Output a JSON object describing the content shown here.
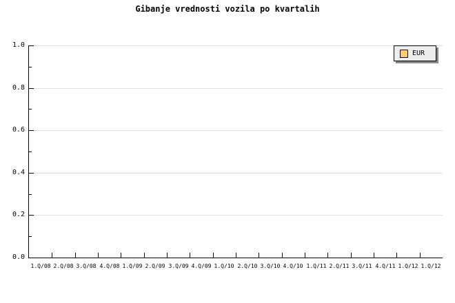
{
  "title": "Gibanje vrednosti vozila po kvartalih",
  "legend": {
    "label": "EUR",
    "swatch_color": "#FFCC66",
    "background": "#EDEDED",
    "border_color": "#000000",
    "shadow_color": "#888888"
  },
  "colors": {
    "background": "#FFFFFF",
    "axis": "#000000",
    "grid": "#DEDEDE",
    "text": "#000000"
  },
  "chart_data": {
    "type": "line",
    "title": "Gibanje vrednosti vozila po kvartalih",
    "categories": [
      "1.Q/08",
      "2.Q/08",
      "3.Q/08",
      "4.Q/08",
      "1.Q/09",
      "2.Q/09",
      "3.Q/09",
      "4.Q/09",
      "1.Q/10",
      "2.Q/10",
      "3.Q/10",
      "4.Q/10",
      "1.Q/11",
      "2.Q/11",
      "3.Q/11",
      "4.Q/11",
      "1.Q/12",
      "1.Q/12"
    ],
    "series": [
      {
        "name": "EUR",
        "color": "#FFCC66",
        "values": []
      }
    ],
    "xlabel": "",
    "ylabel": "",
    "ylim": [
      0.0,
      1.0
    ],
    "y_major_ticks": [
      "0.0",
      "0.2",
      "0.4",
      "0.6",
      "0.8",
      "1.0"
    ],
    "y_minor_ticks": [
      0.1,
      0.3,
      0.5,
      0.7,
      0.9
    ],
    "grid": "horizontal-major-only",
    "legend_position": "top-right"
  }
}
